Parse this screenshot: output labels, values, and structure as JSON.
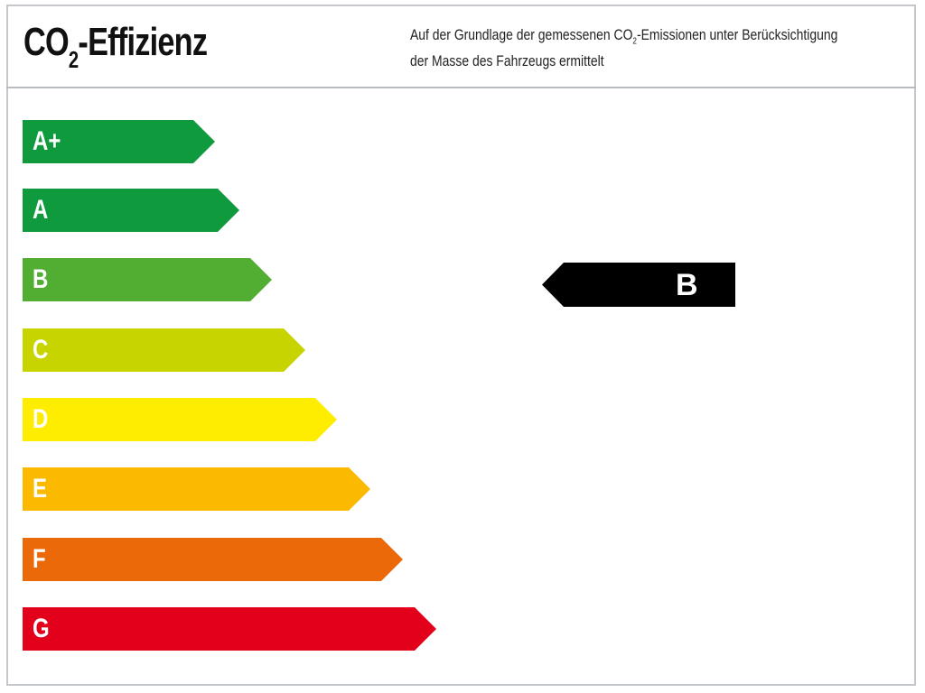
{
  "header": {
    "title_main": "CO",
    "title_sub": "2",
    "title_rest": "-Effizienz",
    "desc_part1": "Auf der Grundlage der gemessenen CO",
    "desc_sub": "2",
    "desc_part2": "-Emissionen unter Berücksichtigung",
    "desc_line2": "der Masse des Fahrzeugs ermittelt"
  },
  "classes": [
    {
      "label": "A+",
      "color": "#0f9a3e"
    },
    {
      "label": "A",
      "color": "#0f9a3e"
    },
    {
      "label": "B",
      "color": "#52ae32"
    },
    {
      "label": "C",
      "color": "#c8d400"
    },
    {
      "label": "D",
      "color": "#ffed00"
    },
    {
      "label": "E",
      "color": "#fbba00"
    },
    {
      "label": "F",
      "color": "#eb6909"
    },
    {
      "label": "G",
      "color": "#e2001a"
    }
  ],
  "indicator": {
    "label": "B",
    "color": "#000000"
  }
}
